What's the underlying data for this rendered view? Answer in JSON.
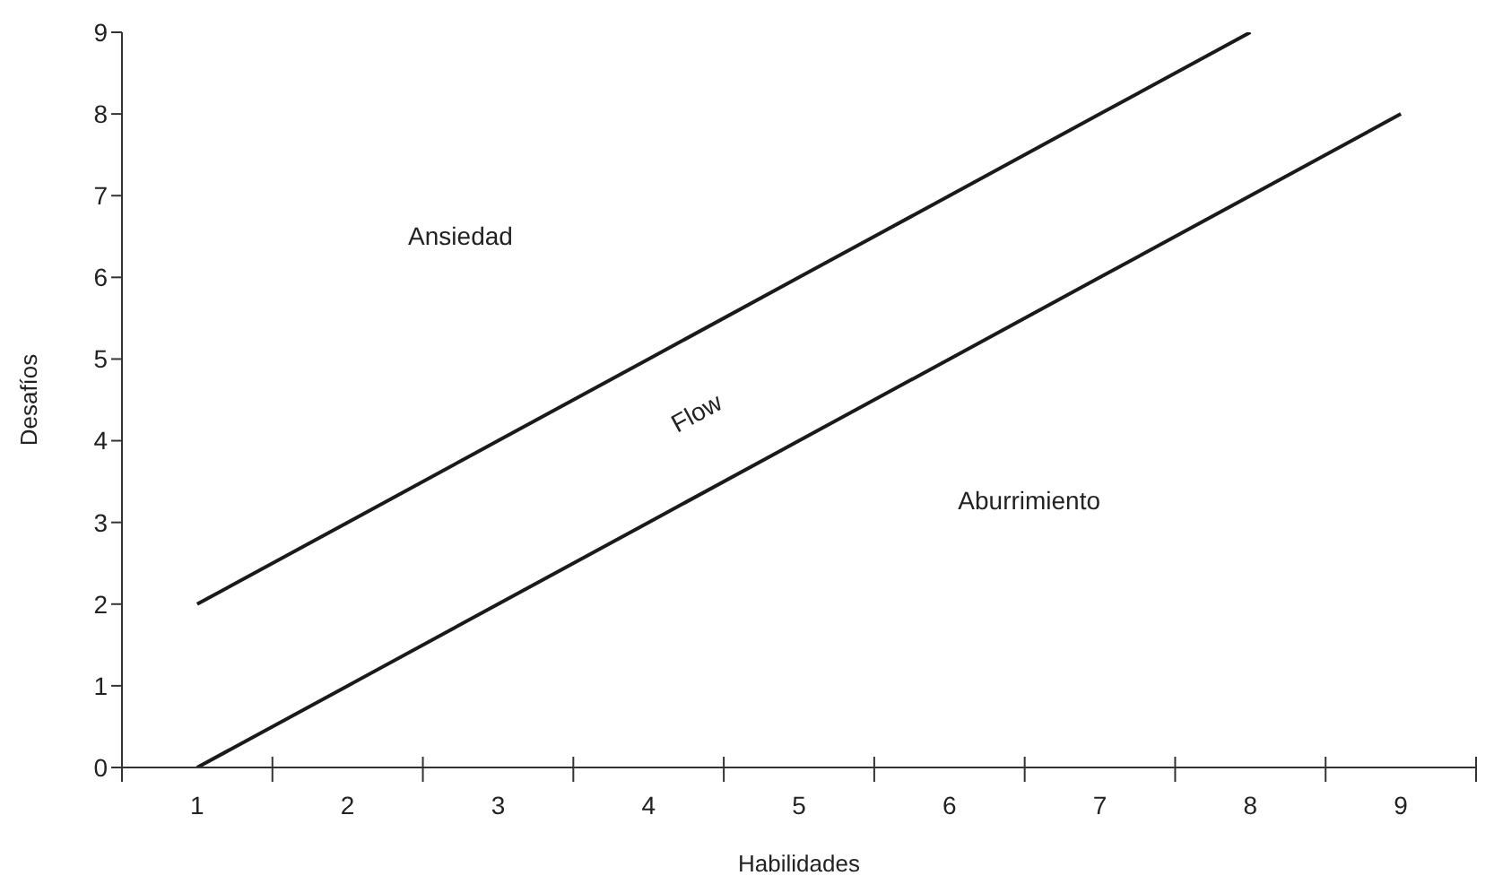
{
  "chart_data": {
    "type": "line",
    "xlabel": "Habilidades",
    "ylabel": "Desafíos",
    "categories": [
      "1",
      "2",
      "3",
      "4",
      "5",
      "6",
      "7",
      "8",
      "9"
    ],
    "series": [
      {
        "color": "#1a1a1a",
        "values": [
          2,
          3,
          4,
          5,
          6,
          7,
          8,
          9,
          null
        ]
      },
      {
        "color": "#1a1a1a",
        "values": [
          0,
          1,
          2,
          3,
          4,
          5,
          6,
          7,
          8
        ]
      }
    ],
    "ylim": [
      0,
      9
    ],
    "yticks": [
      0,
      1,
      2,
      3,
      4,
      5,
      6,
      7,
      8,
      9
    ],
    "annotations": [
      "Ansiedad",
      "Flow",
      "Aburrimiento"
    ],
    "grid": false,
    "legend": false,
    "marker": "none",
    "line_style": "solid"
  }
}
